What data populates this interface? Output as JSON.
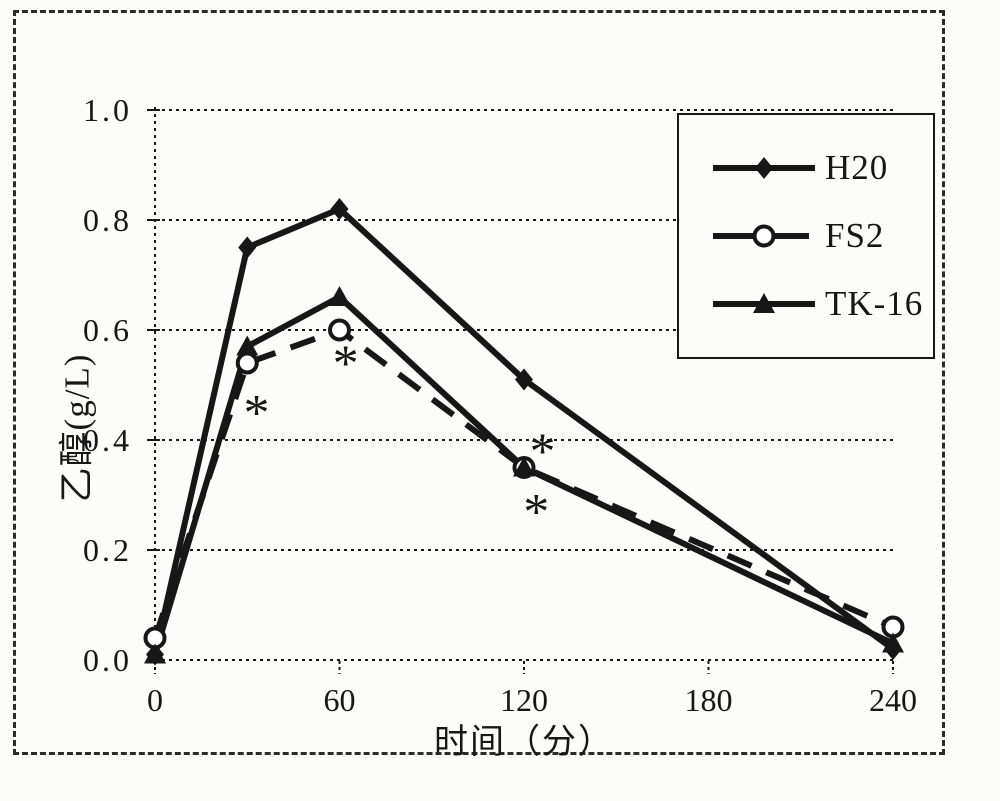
{
  "style": {
    "ink": "#171717",
    "paper": "#fcfcfa"
  },
  "chart_data": {
    "type": "line",
    "title": "",
    "xlabel": "时间（分）",
    "ylabel": "乙醇(g/L)",
    "xlim": [
      0,
      240
    ],
    "ylim": [
      0.0,
      1.0
    ],
    "grid": "horizontal-dotted",
    "legend_position": "top-right",
    "x": [
      0,
      30,
      60,
      120,
      240
    ],
    "x_ticks": [
      0,
      60,
      120,
      180,
      240
    ],
    "x_tick_labels": [
      "0",
      "60",
      "120",
      "180",
      "240"
    ],
    "y_ticks": [
      1.0,
      0.8,
      0.6,
      0.4,
      0.2,
      0.0
    ],
    "y_tick_labels": [
      "1.0",
      "0.8",
      "0.6",
      "0.4",
      "0.2",
      "0.0"
    ],
    "series": [
      {
        "name": "H20",
        "marker": "diamond",
        "line": "solid",
        "values": [
          0.01,
          0.75,
          0.82,
          0.51,
          0.02
        ]
      },
      {
        "name": "FS2",
        "marker": "circle-open",
        "line": "dashed",
        "values": [
          0.04,
          0.54,
          0.6,
          0.35,
          0.06
        ]
      },
      {
        "name": "TK-16",
        "marker": "triangle",
        "line": "solid",
        "values": [
          0.01,
          0.57,
          0.66,
          0.35,
          0.03
        ]
      }
    ],
    "annotations": [
      {
        "symbol": "*",
        "x": 33,
        "y": 0.46
      },
      {
        "symbol": "*",
        "x": 62,
        "y": 0.55
      },
      {
        "symbol": "*",
        "x": 126,
        "y": 0.39
      },
      {
        "symbol": "*",
        "x": 124,
        "y": 0.28
      }
    ]
  }
}
